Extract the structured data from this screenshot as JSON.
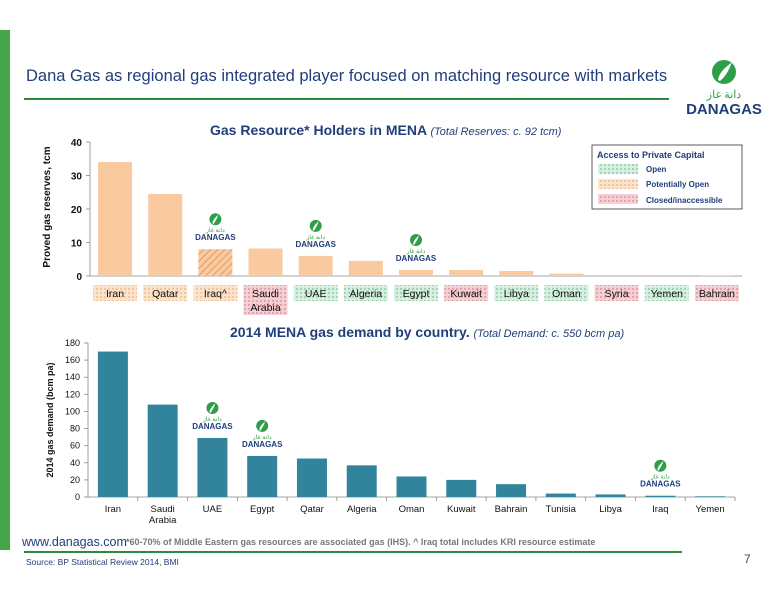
{
  "slide": {
    "title": "Dana Gas as regional gas integrated player focused on matching resource with markets",
    "footer_url": "www.danagas.com",
    "footer_note": "*60-70% of Middle Eastern gas resources are associated gas (IHS). ^ Iraq total includes KRI resource estimate",
    "source": "Source: BP Statistical Review 2014, BMI",
    "page_number": "7",
    "logo": {
      "arabic": "دانة غاز",
      "text": "DANAGAS"
    }
  },
  "colors": {
    "accent_green": "#46a548",
    "title_blue": "#1f3e7a",
    "bar_peach": "#f9c9a0",
    "bar_teal": "#31849b",
    "open_fill": "#d7efe0",
    "closed_fill": "#f4d0d4"
  },
  "chart_data": [
    {
      "type": "bar",
      "title": "Gas Resource* Holders in MENA",
      "subtitle": "(Total Reserves: c. 92 tcm)",
      "ylabel": "Proved gas reserves, tcm",
      "ylim": [
        0,
        40
      ],
      "yticks": [
        0,
        10,
        20,
        30,
        40
      ],
      "categories": [
        "Iran",
        "Qatar",
        "Iraq^",
        "Saudi Arabia",
        "UAE",
        "Algeria",
        "Egypt",
        "Kuwait",
        "Libya",
        "Oman",
        "Syria",
        "Yemen",
        "Bahrain"
      ],
      "values": [
        34,
        24.5,
        8,
        8.2,
        6,
        4.5,
        1.8,
        1.8,
        1.5,
        0.7,
        0.3,
        0.3,
        0.2
      ],
      "access": [
        "potential",
        "potential",
        "potential",
        "closed",
        "open",
        "open",
        "open",
        "closed",
        "open",
        "open",
        "closed",
        "open",
        "closed"
      ],
      "danagas_marked": [
        "Iraq^",
        "UAE",
        "Egypt"
      ],
      "legend": {
        "title": "Access to Private Capital",
        "position": "top-right",
        "items": [
          {
            "key": "open",
            "label": "Open"
          },
          {
            "key": "potential",
            "label": "Potentially Open"
          },
          {
            "key": "closed",
            "label": "Closed/inaccessible"
          }
        ]
      },
      "grid": false
    },
    {
      "type": "bar",
      "title": "2014 MENA gas demand by country.",
      "subtitle": "(Total Demand: c. 550 bcm pa)",
      "ylabel": "2014 gas demand (bcm pa)",
      "ylim": [
        0,
        180
      ],
      "yticks": [
        0,
        20,
        40,
        60,
        80,
        100,
        120,
        140,
        160,
        180
      ],
      "categories": [
        "Iran",
        "Saudi Arabia",
        "UAE",
        "Egypt",
        "Qatar",
        "Algeria",
        "Oman",
        "Kuwait",
        "Bahrain",
        "Tunisia",
        "Libya",
        "Iraq",
        "Yemen"
      ],
      "values": [
        170,
        108,
        69,
        48,
        45,
        37,
        24,
        20,
        15,
        4,
        3,
        1.5,
        0.8
      ],
      "danagas_marked": [
        "UAE",
        "Egypt",
        "Iraq"
      ],
      "grid": false
    }
  ]
}
